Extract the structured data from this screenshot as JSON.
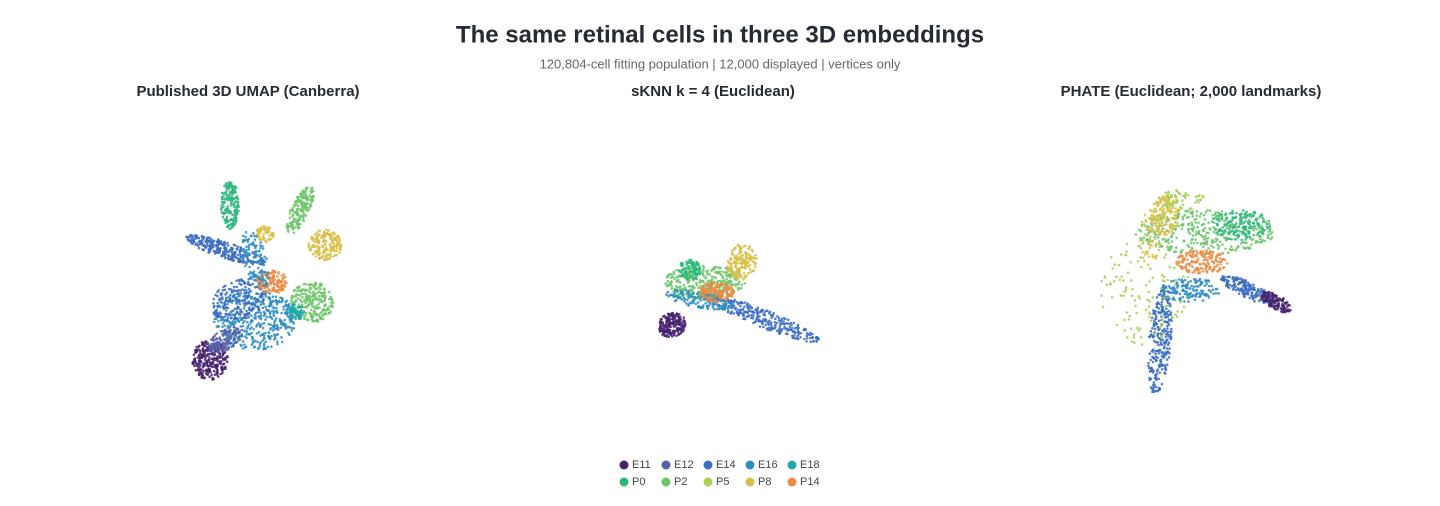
{
  "header": {
    "title": "The same retinal cells in three 3D embeddings",
    "subtitle": "120,804-cell fitting population | 12,000 displayed | vertices only"
  },
  "panels": [
    {
      "title": "Published 3D UMAP (Canberra)"
    },
    {
      "title": "sKNN k = 4 (Euclidean)"
    },
    {
      "title": "PHATE (Euclidean; 2,000 landmarks)"
    }
  ],
  "legend": {
    "items": [
      {
        "label": "E11",
        "color": "#46216f"
      },
      {
        "label": "E12",
        "color": "#5660a8"
      },
      {
        "label": "E14",
        "color": "#3a6cbf"
      },
      {
        "label": "E16",
        "color": "#2b8cc3"
      },
      {
        "label": "E18",
        "color": "#1ea9a6"
      },
      {
        "label": "P0",
        "color": "#2bb77b"
      },
      {
        "label": "P2",
        "color": "#6cc56a"
      },
      {
        "label": "P5",
        "color": "#a9cf58"
      },
      {
        "label": "P8",
        "color": "#d8bf49"
      },
      {
        "label": "P14",
        "color": "#ea8c45"
      }
    ]
  }
}
